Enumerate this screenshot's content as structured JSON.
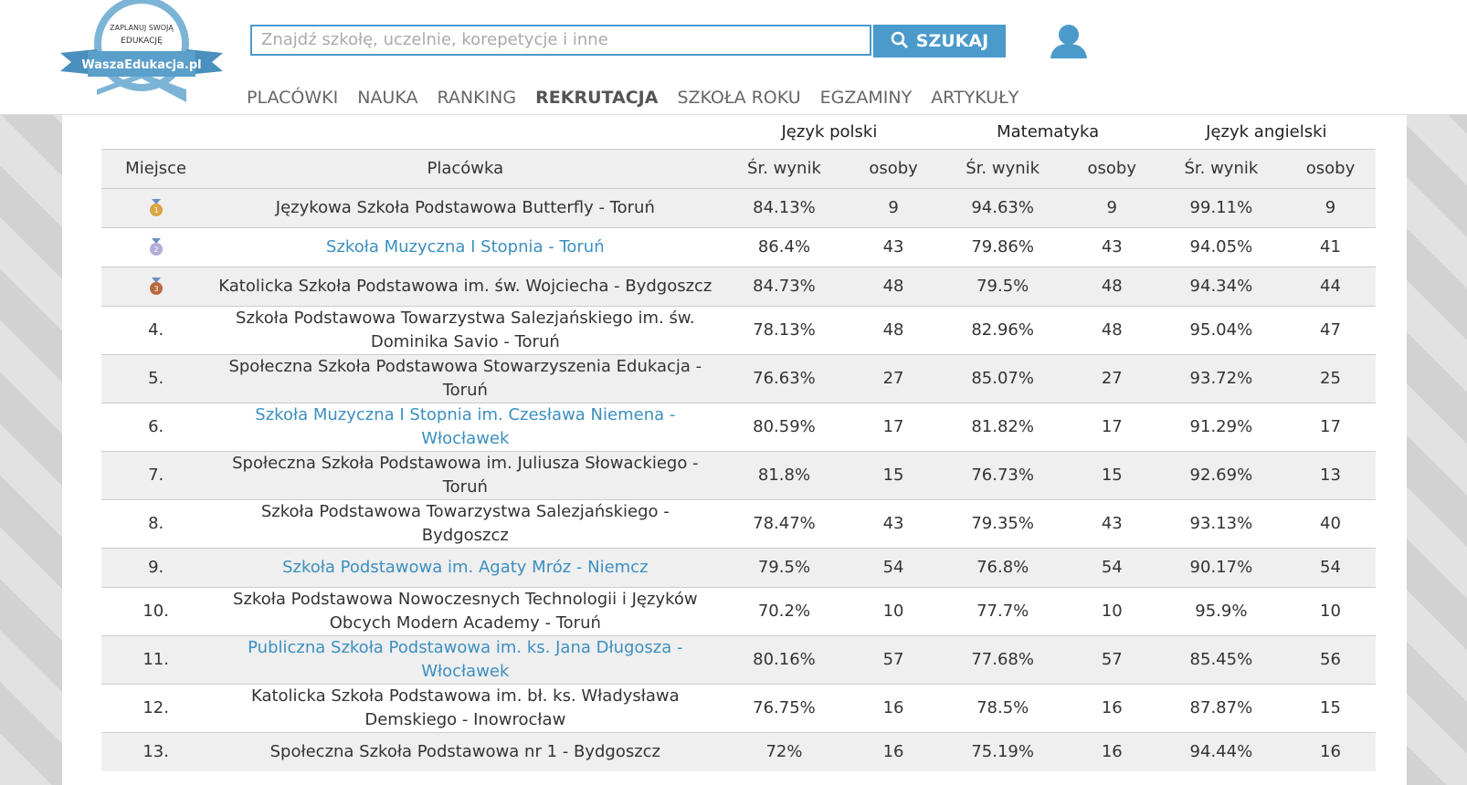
{
  "header": {
    "logo": {
      "line1": "ZAPLANUJ SWOJĄ",
      "line2": "EDUKACJĘ",
      "brand": "WaszaEdukacja.pl"
    },
    "search": {
      "placeholder": "Znajdź szkołę, uczelnie, korepetycje i inne",
      "button": "SZUKAJ"
    },
    "nav": [
      "PLACÓWKI",
      "NAUKA",
      "RANKING",
      "REKRUTACJA",
      "SZKOŁA ROKU",
      "EGZAMINY",
      "ARTYKUŁY"
    ],
    "active_nav": 3
  },
  "table": {
    "groups": [
      "Język polski",
      "Matematyka",
      "Język angielski"
    ],
    "columns": [
      "Miejsce",
      "Placówka",
      "Śr. wynik",
      "osoby",
      "Śr. wynik",
      "osoby",
      "Śr. wynik",
      "osoby"
    ],
    "rows": [
      {
        "medal": true,
        "cells": [
          "1",
          "Językowa Szkoła Podstawowa Butterfly - Toruń",
          "84.13%",
          "9",
          "94.63%",
          "9",
          "99.11%",
          "9"
        ]
      },
      {
        "medal": true,
        "link": true,
        "cells": [
          "2",
          "Szkoła Muzyczna I Stopnia - Toruń",
          "86.4%",
          "43",
          "79.86%",
          "43",
          "94.05%",
          "41"
        ]
      },
      {
        "medal": true,
        "cells": [
          "3",
          "Katolicka Szkoła Podstawowa im. św. Wojciecha - Bydgoszcz",
          "84.73%",
          "48",
          "79.5%",
          "48",
          "94.34%",
          "44"
        ]
      },
      {
        "cells": [
          "4.",
          "Szkoła Podstawowa Towarzystwa Salezjańskiego im. św. Dominika Savio - Toruń",
          "78.13%",
          "48",
          "82.96%",
          "48",
          "95.04%",
          "47"
        ]
      },
      {
        "cells": [
          "5.",
          "Społeczna Szkoła Podstawowa Stowarzyszenia Edukacja - Toruń",
          "76.63%",
          "27",
          "85.07%",
          "27",
          "93.72%",
          "25"
        ]
      },
      {
        "link": true,
        "cells": [
          "6.",
          "Szkoła Muzyczna I Stopnia im. Czesława Niemena - Włocławek",
          "80.59%",
          "17",
          "81.82%",
          "17",
          "91.29%",
          "17"
        ]
      },
      {
        "cells": [
          "7.",
          "Społeczna Szkoła Podstawowa im. Juliusza Słowackiego - Toruń",
          "81.8%",
          "15",
          "76.73%",
          "15",
          "92.69%",
          "13"
        ]
      },
      {
        "cells": [
          "8.",
          "Szkoła Podstawowa Towarzystwa Salezjańskiego - Bydgoszcz",
          "78.47%",
          "43",
          "79.35%",
          "43",
          "93.13%",
          "40"
        ]
      },
      {
        "link": true,
        "cells": [
          "9.",
          "Szkoła Podstawowa im. Agaty Mróz - Niemcz",
          "79.5%",
          "54",
          "76.8%",
          "54",
          "90.17%",
          "54"
        ]
      },
      {
        "cells": [
          "10.",
          "Szkoła Podstawowa Nowoczesnych Technologii i Języków Obcych Modern Academy - Toruń",
          "70.2%",
          "10",
          "77.7%",
          "10",
          "95.9%",
          "10"
        ]
      },
      {
        "link": true,
        "cells": [
          "11.",
          "Publiczna Szkoła Podstawowa im. ks. Jana Długosza - Włocławek",
          "80.16%",
          "57",
          "77.68%",
          "57",
          "85.45%",
          "56"
        ]
      },
      {
        "cells": [
          "12.",
          "Katolicka Szkoła Podstawowa im. bł. ks. Władysława Demskiego - Inowrocław",
          "76.75%",
          "16",
          "78.5%",
          "16",
          "87.87%",
          "15"
        ]
      },
      {
        "cells": [
          "13.",
          "Społeczna Szkoła Podstawowa nr 1 - Bydgoszcz",
          "72%",
          "16",
          "75.19%",
          "16",
          "94.44%",
          "16"
        ]
      }
    ]
  }
}
